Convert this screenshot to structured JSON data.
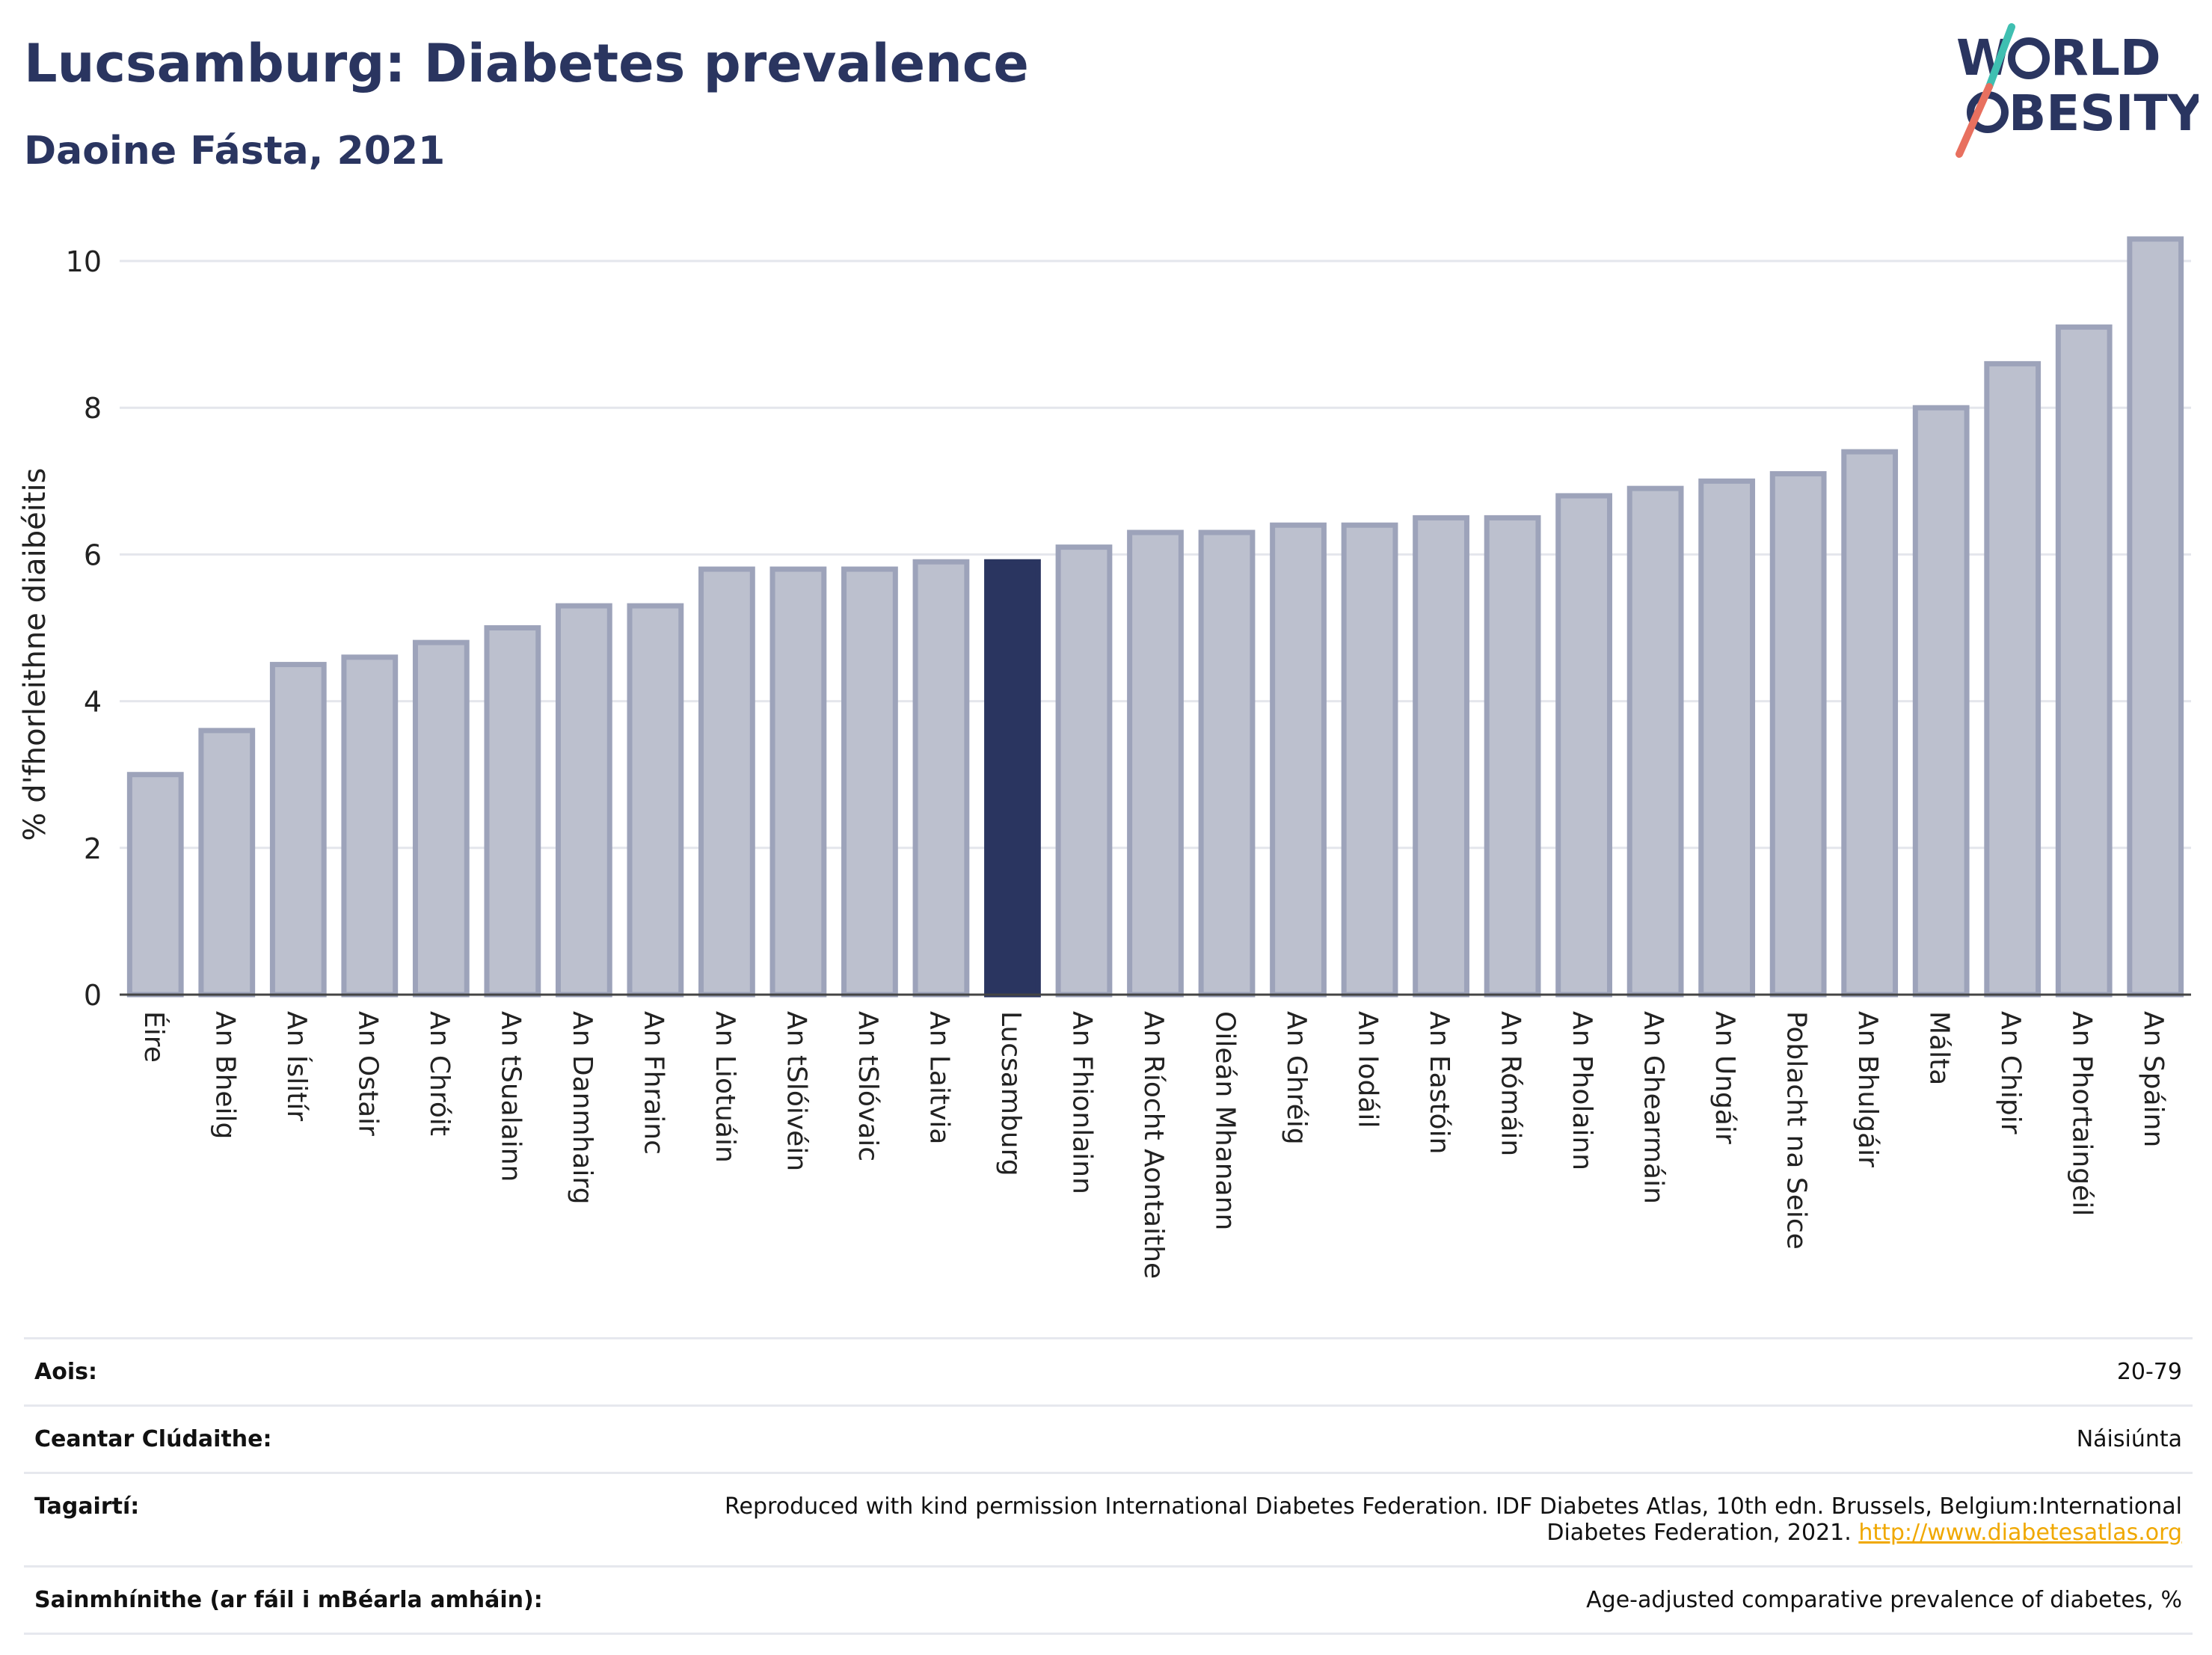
{
  "header": {
    "title": "Lucsamburg: Diabetes prevalence",
    "subtitle": "Daoine Fásta, 2021"
  },
  "logo": {
    "line1_left": "W",
    "line1_right": "RLD",
    "line2_right": "BESITY",
    "accent_teal": "#3fbfb1",
    "accent_coral": "#e8705f",
    "color": "#2a3560"
  },
  "chart_data": {
    "type": "bar",
    "title": "Lucsamburg: Diabetes prevalence",
    "subtitle": "Daoine Fásta, 2021",
    "ylabel": "% d'fhorleithne diaibéitis",
    "xlabel": "",
    "ylim": [
      0,
      10.5
    ],
    "yticks": [
      0,
      2,
      4,
      6,
      8,
      10
    ],
    "grid": true,
    "legend": "none",
    "highlight": "Lucsamburg",
    "highlight_color": "#2a3560",
    "bar_color": "#bcc0ce",
    "bar_edge_color": "#9da3ba",
    "categories": [
      "Éire",
      "An Bheilg",
      "An Íslitír",
      "An Ostair",
      "An Chróit",
      "An tSualainn",
      "An Danmhairg",
      "An Fhrainc",
      "An Liotuáin",
      "An tSlóivéin",
      "An tSlóvaic",
      "An Laitvia",
      "Lucsamburg",
      "An Fhionlainn",
      "An Ríocht Aontaithe",
      "Oileán Mhanann",
      "An Ghréig",
      "An Iodáil",
      "An Eastóin",
      "An Rómáin",
      "An Pholainn",
      "An Ghearmáin",
      "An Ungáir",
      "Poblacht na Seice",
      "An Bhulgáir",
      "Málta",
      "An Chipir",
      "An Phortaingéil",
      "An Spáinn"
    ],
    "values": [
      3.0,
      3.6,
      4.5,
      4.6,
      4.8,
      5.0,
      5.3,
      5.3,
      5.8,
      5.8,
      5.8,
      5.9,
      5.9,
      6.1,
      6.3,
      6.3,
      6.4,
      6.4,
      6.5,
      6.5,
      6.8,
      6.9,
      7.0,
      7.1,
      7.4,
      8.0,
      8.6,
      9.1,
      10.3
    ]
  },
  "info": {
    "rows": [
      {
        "key": "Aois:",
        "value": "20-79"
      },
      {
        "key": "Ceantar Clúdaithe:",
        "value": "Náisiúnta"
      },
      {
        "key": "Tagairtí:",
        "value": "Reproduced with kind permission International Diabetes Federation.  IDF Diabetes Atlas, 10th edn. Brussels, Belgium:International Diabetes Federation, 2021.",
        "link": "http://www.diabetesatlas.org"
      },
      {
        "key": "Sainmhínithe (ar fáil i mBéarla amháin):",
        "value": "Age-adjusted comparative prevalence of diabetes, %"
      }
    ]
  }
}
